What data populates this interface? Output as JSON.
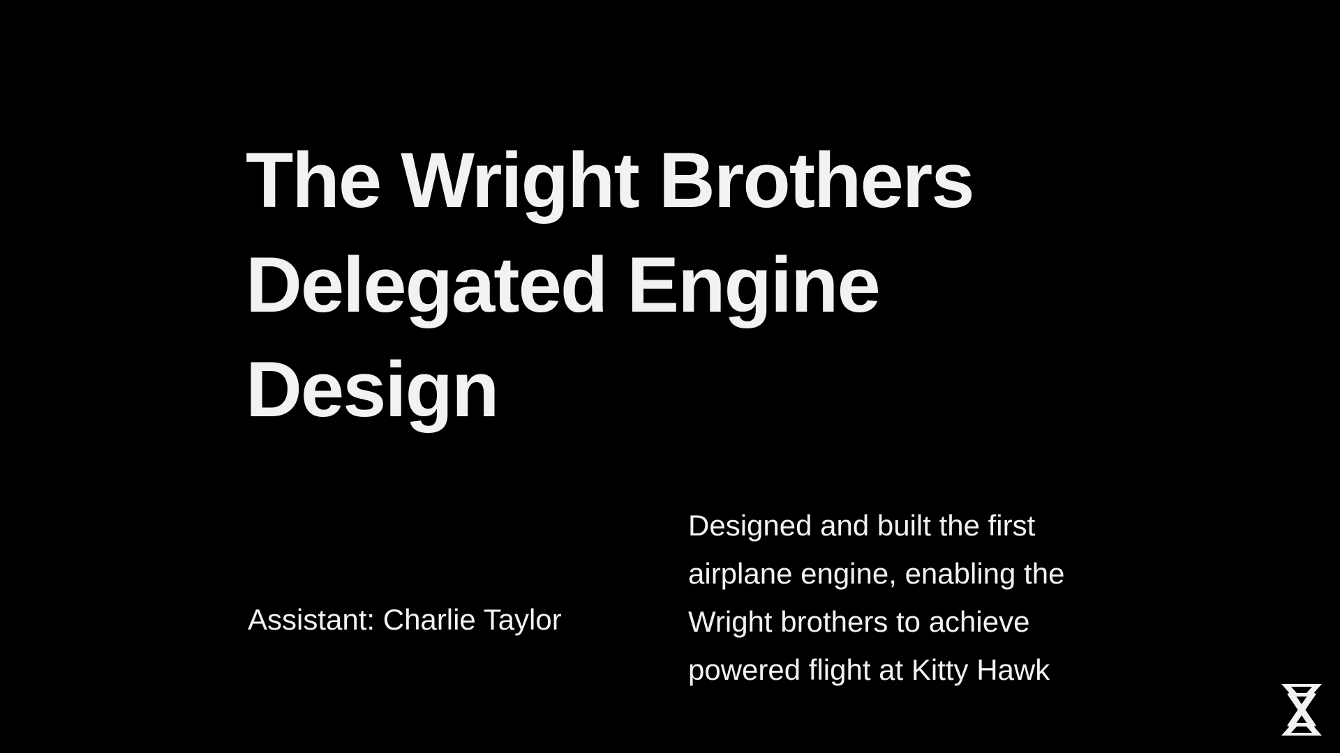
{
  "slide": {
    "title": "The Wright Brothers Delegated Engine Design",
    "assistant_line": "Assistant: Charlie Taylor",
    "description": "Designed and built the first airplane engine, enabling the Wright brothers to achieve powered flight at Kitty Hawk",
    "logo_icon": "hourglass-x-logo-icon"
  },
  "colors": {
    "background": "#000000",
    "text": "#f2f2f2"
  }
}
